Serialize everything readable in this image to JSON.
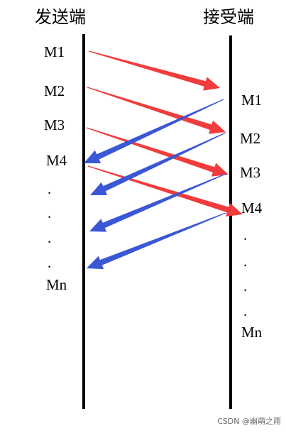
{
  "sender": {
    "title": "发送端",
    "labels": [
      "M1",
      "M2",
      "M3",
      "M4",
      ".",
      ".",
      ".",
      ".",
      "Mn"
    ]
  },
  "receiver": {
    "title": "接受端",
    "labels": [
      "M1",
      "M2",
      "M3",
      "M4",
      ".",
      ".",
      ".",
      ".",
      "Mn"
    ]
  },
  "watermark": "CSDN @幽萌之雨"
}
